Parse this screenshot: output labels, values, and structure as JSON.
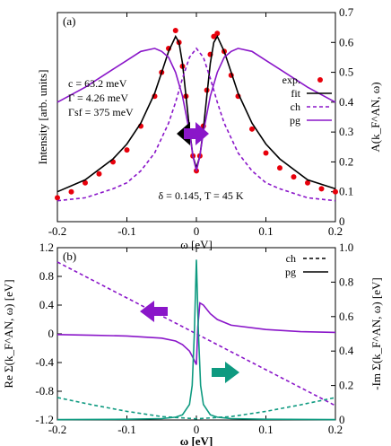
{
  "chart_data": [
    {
      "panel": "(a)",
      "type": "line",
      "xlabel": "ω [eV]",
      "ylabel_left": "Intensity [arb. units]",
      "ylabel_right": "A(k_F^AN, ω)",
      "xlim": [
        -0.2,
        0.2
      ],
      "ylim_right": [
        0,
        0.7
      ],
      "x_ticks": [
        "-0.2",
        "-0.1",
        "0",
        "0.1",
        "0.2"
      ],
      "y_ticks_right": [
        "0",
        "0.1",
        "0.2",
        "0.3",
        "0.4",
        "0.5",
        "0.6",
        "0.7"
      ],
      "annotations": {
        "param1": "c = 63.2 meV",
        "param2": "Γ = 4.26 meV",
        "param3": "Γsf = 375 meV",
        "params_bottom": "δ = 0.145, T = 45 K"
      },
      "legend_position": "top-right",
      "series": [
        {
          "name": "exp.",
          "style": "points",
          "color": "#e8000b",
          "x": [
            -0.2,
            -0.18,
            -0.16,
            -0.14,
            -0.12,
            -0.1,
            -0.08,
            -0.06,
            -0.05,
            -0.04,
            -0.03,
            -0.025,
            -0.02,
            -0.015,
            -0.01,
            -0.005,
            0.0,
            0.005,
            0.01,
            0.015,
            0.02,
            0.025,
            0.03,
            0.04,
            0.05,
            0.06,
            0.08,
            0.1,
            0.12,
            0.14,
            0.16,
            0.18,
            0.2
          ],
          "y": [
            0.08,
            0.1,
            0.13,
            0.16,
            0.2,
            0.24,
            0.32,
            0.42,
            0.5,
            0.58,
            0.64,
            0.6,
            0.52,
            0.42,
            0.3,
            0.22,
            0.17,
            0.22,
            0.32,
            0.44,
            0.56,
            0.62,
            0.63,
            0.57,
            0.49,
            0.42,
            0.31,
            0.23,
            0.18,
            0.15,
            0.13,
            0.11,
            0.1
          ]
        },
        {
          "name": "fit",
          "style": "solid",
          "color": "#000000",
          "x": [
            -0.2,
            -0.16,
            -0.12,
            -0.1,
            -0.08,
            -0.06,
            -0.05,
            -0.04,
            -0.03,
            -0.025,
            -0.02,
            -0.015,
            -0.01,
            -0.005,
            0.0,
            0.005,
            0.01,
            0.015,
            0.02,
            0.025,
            0.03,
            0.04,
            0.05,
            0.06,
            0.08,
            0.1,
            0.12,
            0.16,
            0.2
          ],
          "y": [
            0.1,
            0.14,
            0.21,
            0.26,
            0.33,
            0.43,
            0.5,
            0.57,
            0.62,
            0.6,
            0.53,
            0.42,
            0.31,
            0.22,
            0.18,
            0.22,
            0.31,
            0.42,
            0.53,
            0.6,
            0.62,
            0.57,
            0.5,
            0.43,
            0.33,
            0.26,
            0.21,
            0.14,
            0.11
          ]
        },
        {
          "name": "ch",
          "style": "dashed",
          "color": "#8a16c9",
          "x": [
            -0.2,
            -0.16,
            -0.12,
            -0.1,
            -0.08,
            -0.06,
            -0.04,
            -0.03,
            -0.02,
            -0.01,
            0.0,
            0.01,
            0.02,
            0.03,
            0.04,
            0.06,
            0.08,
            0.1,
            0.12,
            0.16,
            0.2
          ],
          "y": [
            0.07,
            0.08,
            0.11,
            0.13,
            0.17,
            0.23,
            0.33,
            0.4,
            0.48,
            0.55,
            0.58,
            0.55,
            0.48,
            0.4,
            0.33,
            0.23,
            0.17,
            0.13,
            0.11,
            0.08,
            0.07
          ]
        },
        {
          "name": "pg",
          "style": "solid",
          "color": "#8a16c9",
          "x": [
            -0.2,
            -0.16,
            -0.12,
            -0.1,
            -0.08,
            -0.06,
            -0.05,
            -0.04,
            -0.03,
            -0.02,
            -0.01,
            -0.005,
            0.0,
            0.005,
            0.01,
            0.02,
            0.03,
            0.04,
            0.05,
            0.06,
            0.08,
            0.1,
            0.12,
            0.16,
            0.2
          ],
          "y": [
            0.4,
            0.45,
            0.51,
            0.54,
            0.57,
            0.58,
            0.57,
            0.55,
            0.5,
            0.42,
            0.3,
            0.22,
            0.17,
            0.22,
            0.3,
            0.42,
            0.5,
            0.55,
            0.57,
            0.58,
            0.57,
            0.54,
            0.51,
            0.45,
            0.4
          ]
        }
      ]
    },
    {
      "panel": "(b)",
      "type": "line",
      "xlabel": "ω [eV]",
      "ylabel_left": "Re Σ(k_F^AN, ω) [eV]",
      "ylabel_right": "-Im Σ(k_F^AN, ω) [eV]",
      "xlim": [
        -0.2,
        0.2
      ],
      "ylim_left": [
        -1.2,
        1.2
      ],
      "ylim_right": [
        0,
        1.0
      ],
      "x_ticks": [
        "-0.2",
        "-0.1",
        "0",
        "0.1",
        "0.2"
      ],
      "y_ticks_left": [
        "-1.2",
        "-0.8",
        "-0.4",
        "0",
        "0.4",
        "0.8",
        "1.2"
      ],
      "y_ticks_right": [
        "0",
        "0.2",
        "0.4",
        "0.6",
        "0.8",
        "1.0"
      ],
      "legend_position": "top-right",
      "series": [
        {
          "name": "ch",
          "part": "Re",
          "axis": "left",
          "style": "dashed",
          "color": "#8a16c9",
          "x": [
            -0.2,
            -0.1,
            0.0,
            0.1,
            0.2
          ],
          "y": [
            1.0,
            0.5,
            0.0,
            -0.5,
            -1.0
          ]
        },
        {
          "name": "pg",
          "part": "Re",
          "axis": "left",
          "style": "solid",
          "color": "#8a16c9",
          "x": [
            -0.2,
            -0.15,
            -0.1,
            -0.05,
            -0.03,
            -0.02,
            -0.01,
            -0.005,
            0.0,
            0.002,
            0.005,
            0.01,
            0.02,
            0.03,
            0.05,
            0.1,
            0.15,
            0.2
          ],
          "y": [
            -0.01,
            -0.02,
            -0.03,
            -0.06,
            -0.1,
            -0.15,
            -0.24,
            -0.33,
            -0.43,
            0.1,
            0.43,
            0.4,
            0.28,
            0.2,
            0.12,
            0.06,
            0.03,
            0.02
          ]
        },
        {
          "name": "ch",
          "part": "Im",
          "axis": "right",
          "style": "dashed",
          "color": "#0e9a80",
          "x": [
            -0.2,
            -0.15,
            -0.1,
            -0.05,
            0.0,
            0.05,
            0.1,
            0.15,
            0.2
          ],
          "y": [
            0.13,
            0.088,
            0.05,
            0.02,
            0.007,
            0.02,
            0.05,
            0.088,
            0.13
          ]
        },
        {
          "name": "pg",
          "part": "Im",
          "axis": "right",
          "style": "solid",
          "color": "#0e9a80",
          "x": [
            -0.2,
            -0.1,
            -0.05,
            -0.03,
            -0.02,
            -0.01,
            -0.006,
            -0.003,
            0.0,
            0.003,
            0.006,
            0.01,
            0.02,
            0.03,
            0.05,
            0.1,
            0.2
          ],
          "y": [
            0.002,
            0.004,
            0.008,
            0.016,
            0.03,
            0.09,
            0.2,
            0.5,
            0.93,
            0.5,
            0.2,
            0.09,
            0.03,
            0.016,
            0.008,
            0.004,
            0.002
          ]
        }
      ]
    }
  ]
}
